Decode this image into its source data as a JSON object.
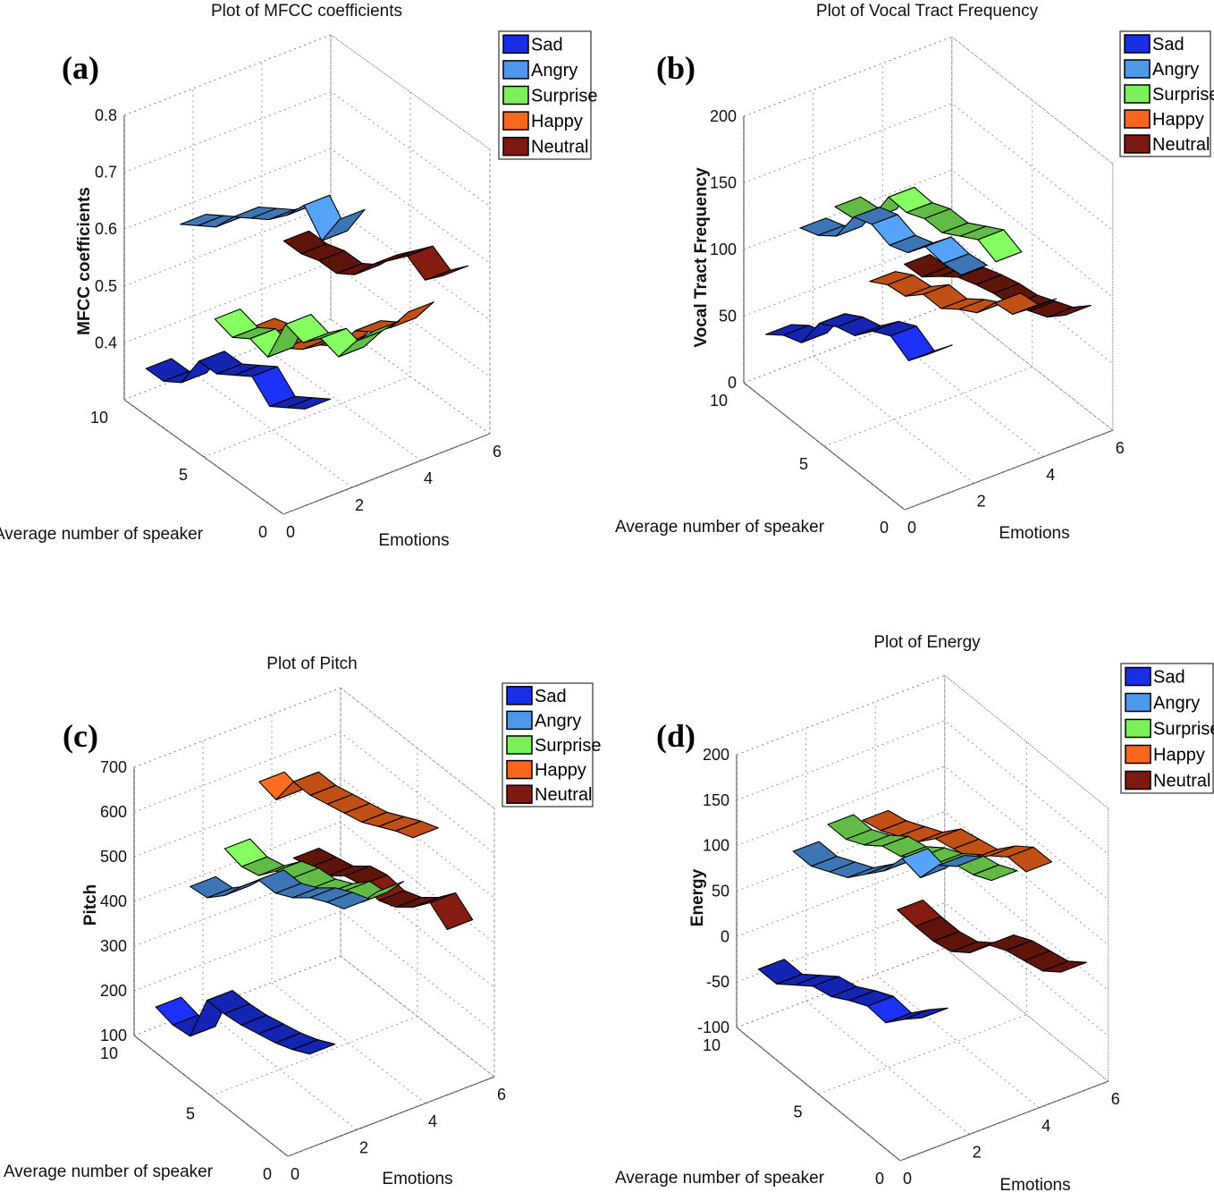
{
  "colors": {
    "Sad": "#1a2ee6",
    "Angry": "#4f97e8",
    "Surprise": "#7cf05a",
    "Happy": "#f7661e",
    "Neutral": "#7a1a10"
  },
  "chart_data": [
    {
      "panel_label": "(a)",
      "type": "ribbon3d",
      "title": "Plot of MFCC coefficients",
      "xlabel": "Emotions",
      "ylabel": "Average number of speaker",
      "zlabel": "MFCC coefficients",
      "xlim": [
        0,
        6
      ],
      "ylim": [
        0,
        10
      ],
      "zlim": [
        0.3,
        0.8
      ],
      "xticks": [
        "0",
        "2",
        "4",
        "6"
      ],
      "yticks": [
        "0",
        "5",
        "10"
      ],
      "zticks": [
        "0.4",
        "0.5",
        "0.6",
        "0.7",
        "0.8"
      ],
      "legend": [
        "Sad",
        "Angry",
        "Surprise",
        "Happy",
        "Neutral"
      ],
      "series": [
        {
          "name": "Sad",
          "x": 1,
          "values": [
            0.47,
            0.45,
            0.43,
            0.46,
            0.44,
            0.42,
            0.42,
            0.36,
            0.34,
            0.34
          ]
        },
        {
          "name": "Angry",
          "x": 2,
          "values": [
            0.78,
            0.72,
            0.76,
            0.72,
            0.69,
            0.67,
            0.65,
            0.61,
            0.59,
            0.57
          ]
        },
        {
          "name": "Surprise",
          "x": 3,
          "values": [
            0.56,
            0.52,
            0.47,
            0.48,
            0.45,
            0.46,
            0.38,
            0.39,
            0.37,
            0.38
          ]
        },
        {
          "name": "Happy",
          "x": 4,
          "values": [
            0.57,
            0.52,
            0.49,
            0.47,
            0.42,
            0.4,
            0.37,
            0.35,
            0.35,
            0.34
          ]
        },
        {
          "name": "Neutral",
          "x": 5,
          "values": [
            0.61,
            0.58,
            0.6,
            0.57,
            0.54,
            0.5,
            0.48,
            0.48,
            0.47,
            0.47
          ]
        }
      ]
    },
    {
      "panel_label": "(b)",
      "type": "ribbon3d",
      "title": "Plot of Vocal Tract Frequency",
      "xlabel": "Emotions",
      "ylabel": "Average number of speaker",
      "zlabel": "Vocal Tract Frequency",
      "xlim": [
        0,
        6
      ],
      "ylim": [
        0,
        10
      ],
      "zlim": [
        0,
        200
      ],
      "xticks": [
        "0",
        "2",
        "4",
        "6"
      ],
      "yticks": [
        "0",
        "5",
        "10"
      ],
      "zticks": [
        "0",
        "50",
        "100",
        "150",
        "200"
      ],
      "legend": [
        "Sad",
        "Angry",
        "Surprise",
        "Happy",
        "Neutral"
      ],
      "series": [
        {
          "name": "Sad",
          "x": 1,
          "values": [
            110,
            95,
            103,
            96,
            82,
            78,
            70,
            45,
            40,
            30
          ]
        },
        {
          "name": "Angry",
          "x": 2,
          "values": [
            160,
            158,
            160,
            145,
            140,
            145,
            140,
            115,
            105,
            100
          ]
        },
        {
          "name": "Surprise",
          "x": 3,
          "values": [
            160,
            166,
            158,
            150,
            150,
            144,
            145,
            118,
            108,
            106
          ]
        },
        {
          "name": "Happy",
          "x": 4,
          "values": [
            115,
            100,
            98,
            80,
            72,
            62,
            62,
            50,
            48,
            40
          ]
        },
        {
          "name": "Neutral",
          "x": 5,
          "values": [
            100,
            88,
            82,
            76,
            74,
            70,
            65,
            55,
            44,
            43
          ]
        }
      ]
    },
    {
      "panel_label": "(c)",
      "type": "ribbon3d",
      "title": "Plot of Pitch",
      "xlabel": "Emotions",
      "ylabel": "Average number of speaker",
      "zlabel": "Pitch",
      "xlim": [
        0,
        6
      ],
      "ylim": [
        0,
        10
      ],
      "zlim": [
        100,
        700
      ],
      "xticks": [
        "0",
        "2",
        "4",
        "6"
      ],
      "yticks": [
        "0",
        "5",
        "10"
      ],
      "zticks": [
        "100",
        "200",
        "300",
        "400",
        "500",
        "600",
        "700"
      ],
      "legend": [
        "Sad",
        "Angry",
        "Surprise",
        "Happy",
        "Neutral"
      ],
      "series": [
        {
          "name": "Sad",
          "x": 1,
          "values": [
            310,
            290,
            275,
            265,
            255,
            250,
            250,
            140,
            135,
            145
          ]
        },
        {
          "name": "Angry",
          "x": 2,
          "values": [
            605,
            590,
            570,
            540,
            520,
            520,
            475,
            425,
            390,
            385
          ]
        },
        {
          "name": "Surprise",
          "x": 3,
          "values": [
            615,
            560,
            555,
            520,
            500,
            495,
            480,
            440,
            430,
            440
          ]
        },
        {
          "name": "Happy",
          "x": 4,
          "values": [
            705,
            690,
            670,
            650,
            640,
            630,
            620,
            620,
            550,
            560
          ]
        },
        {
          "name": "Neutral",
          "x": 5,
          "values": [
            470,
            500,
            460,
            430,
            415,
            420,
            410,
            380,
            370,
            360
          ]
        }
      ]
    },
    {
      "panel_label": "(d)",
      "type": "ribbon3d",
      "title": "Plot of Energy",
      "xlabel": "Emotions",
      "ylabel": "Average number of speaker",
      "zlabel": "Energy",
      "xlim": [
        0,
        6
      ],
      "ylim": [
        0,
        10
      ],
      "zlim": [
        -100,
        200
      ],
      "xticks": [
        "0",
        "2",
        "4",
        "6"
      ],
      "yticks": [
        "0",
        "5",
        "10"
      ],
      "zticks": [
        "-100",
        "-50",
        "0",
        "50",
        "100",
        "150",
        "200"
      ],
      "legend": [
        "Sad",
        "Angry",
        "Surprise",
        "Happy",
        "Neutral"
      ],
      "series": [
        {
          "name": "Sad",
          "x": 1,
          "values": [
            48,
            30,
            10,
            12,
            2,
            -10,
            -15,
            -30,
            -45,
            -45
          ]
        },
        {
          "name": "Angry",
          "x": 2,
          "values": [
            200,
            185,
            155,
            160,
            130,
            110,
            90,
            80,
            70,
            70
          ]
        },
        {
          "name": "Surprise",
          "x": 3,
          "values": [
            170,
            160,
            155,
            140,
            130,
            115,
            110,
            95,
            85,
            85
          ]
        },
        {
          "name": "Happy",
          "x": 4,
          "values": [
            165,
            165,
            150,
            130,
            125,
            120,
            100,
            90,
            80,
            75
          ]
        },
        {
          "name": "Neutral",
          "x": 5,
          "values": [
            40,
            25,
            20,
            15,
            5,
            -20,
            -35,
            -40,
            -40,
            -38
          ]
        }
      ]
    }
  ]
}
